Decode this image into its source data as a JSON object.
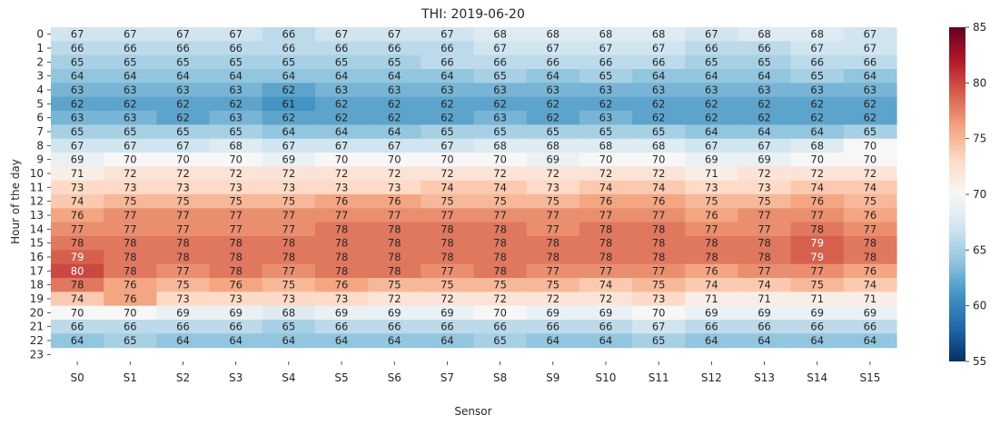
{
  "chart_data": {
    "type": "heatmap",
    "title": "THI: 2019-06-20",
    "xlabel": "Sensor",
    "ylabel": "Hour of the day",
    "x_categories": [
      "S0",
      "S1",
      "S2",
      "S3",
      "S4",
      "S5",
      "S6",
      "S7",
      "S8",
      "S9",
      "S10",
      "S11",
      "S12",
      "S13",
      "S14",
      "S15"
    ],
    "y_categories": [
      "0",
      "1",
      "2",
      "3",
      "4",
      "5",
      "6",
      "7",
      "8",
      "9",
      "10",
      "11",
      "12",
      "13",
      "14",
      "15",
      "16",
      "17",
      "18",
      "19",
      "20",
      "21",
      "22",
      "23"
    ],
    "values": [
      [
        67,
        67,
        67,
        67,
        66,
        67,
        67,
        67,
        68,
        68,
        68,
        68,
        67,
        68,
        68,
        67
      ],
      [
        66,
        66,
        66,
        66,
        66,
        66,
        66,
        66,
        67,
        67,
        67,
        67,
        66,
        66,
        67,
        67
      ],
      [
        65,
        65,
        65,
        65,
        65,
        65,
        65,
        66,
        66,
        66,
        66,
        66,
        65,
        65,
        66,
        66
      ],
      [
        64,
        64,
        64,
        64,
        64,
        64,
        64,
        64,
        65,
        64,
        65,
        64,
        64,
        64,
        65,
        64
      ],
      [
        63,
        63,
        63,
        63,
        62,
        63,
        63,
        63,
        63,
        63,
        63,
        63,
        63,
        63,
        63,
        63
      ],
      [
        62,
        62,
        62,
        62,
        61,
        62,
        62,
        62,
        62,
        62,
        62,
        62,
        62,
        62,
        62,
        62
      ],
      [
        63,
        63,
        62,
        63,
        62,
        62,
        62,
        62,
        63,
        62,
        63,
        62,
        62,
        62,
        62,
        62
      ],
      [
        65,
        65,
        65,
        65,
        64,
        64,
        64,
        65,
        65,
        65,
        65,
        65,
        64,
        64,
        64,
        65
      ],
      [
        67,
        67,
        67,
        68,
        67,
        67,
        67,
        67,
        68,
        68,
        68,
        68,
        67,
        67,
        68,
        70
      ],
      [
        69,
        70,
        70,
        70,
        69,
        70,
        70,
        70,
        70,
        69,
        70,
        70,
        69,
        69,
        70,
        70
      ],
      [
        71,
        72,
        72,
        72,
        72,
        72,
        72,
        72,
        72,
        72,
        72,
        72,
        71,
        72,
        72,
        72
      ],
      [
        73,
        73,
        73,
        73,
        73,
        73,
        73,
        74,
        74,
        73,
        74,
        74,
        73,
        73,
        74,
        74
      ],
      [
        74,
        75,
        75,
        75,
        75,
        76,
        76,
        75,
        75,
        75,
        76,
        76,
        75,
        75,
        76,
        75
      ],
      [
        76,
        77,
        77,
        77,
        77,
        77,
        77,
        77,
        77,
        77,
        77,
        77,
        76,
        77,
        77,
        76
      ],
      [
        77,
        77,
        77,
        77,
        77,
        78,
        78,
        78,
        78,
        77,
        78,
        78,
        77,
        77,
        78,
        77
      ],
      [
        78,
        78,
        78,
        78,
        78,
        78,
        78,
        78,
        78,
        78,
        78,
        78,
        78,
        78,
        79,
        78
      ],
      [
        79,
        78,
        78,
        78,
        78,
        78,
        78,
        78,
        78,
        78,
        78,
        78,
        78,
        78,
        79,
        78
      ],
      [
        80,
        78,
        77,
        78,
        77,
        78,
        78,
        77,
        78,
        77,
        77,
        77,
        76,
        77,
        77,
        76
      ],
      [
        78,
        76,
        75,
        76,
        75,
        76,
        75,
        75,
        75,
        75,
        74,
        75,
        74,
        74,
        75,
        74
      ],
      [
        74,
        76,
        73,
        73,
        73,
        73,
        72,
        72,
        72,
        72,
        72,
        73,
        71,
        71,
        71,
        71
      ],
      [
        70,
        70,
        69,
        69,
        68,
        69,
        69,
        69,
        70,
        69,
        69,
        70,
        69,
        69,
        69,
        69
      ],
      [
        66,
        66,
        66,
        66,
        65,
        66,
        66,
        66,
        66,
        66,
        66,
        67,
        66,
        66,
        66,
        66
      ],
      [
        64,
        65,
        64,
        64,
        64,
        64,
        64,
        64,
        65,
        64,
        64,
        65,
        64,
        64,
        64,
        64
      ],
      [
        null,
        null,
        null,
        null,
        null,
        null,
        null,
        null,
        null,
        null,
        null,
        null,
        null,
        null,
        null,
        null
      ]
    ],
    "colormap": "RdBu_r",
    "colorbar": {
      "range": [
        55,
        85
      ],
      "ticks": [
        55,
        60,
        65,
        70,
        75,
        80,
        85
      ]
    },
    "colors": {
      "low": "#053061",
      "mid": "#f7f7f7",
      "high": "#67001f"
    },
    "annotations": true,
    "grid": false
  }
}
